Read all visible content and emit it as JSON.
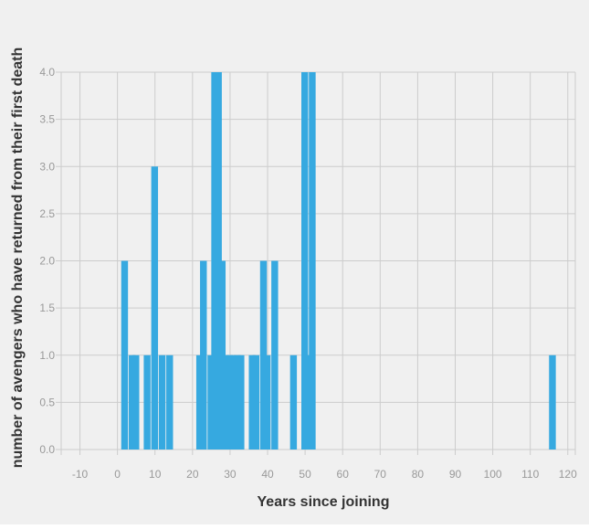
{
  "chart_data": {
    "type": "bar",
    "title": "",
    "xlabel": "Years since joining",
    "ylabel": "number of avengers who have returned from their first death",
    "xlim": [
      -15,
      122
    ],
    "ylim": [
      0,
      4
    ],
    "x_ticks": [
      -10,
      0,
      10,
      20,
      30,
      40,
      50,
      60,
      70,
      80,
      90,
      100,
      110,
      120
    ],
    "y_ticks": [
      0.0,
      0.5,
      1.0,
      1.5,
      2.0,
      2.5,
      3.0,
      3.5,
      4.0
    ],
    "bar_width_years": 2,
    "color": "#36a9e0",
    "grid": true,
    "bars": [
      {
        "x": 2,
        "y": 2
      },
      {
        "x": 4,
        "y": 1
      },
      {
        "x": 5,
        "y": 1
      },
      {
        "x": 8,
        "y": 1
      },
      {
        "x": 10,
        "y": 3
      },
      {
        "x": 12,
        "y": 1
      },
      {
        "x": 14,
        "y": 1
      },
      {
        "x": 22,
        "y": 1
      },
      {
        "x": 23,
        "y": 2
      },
      {
        "x": 25,
        "y": 1
      },
      {
        "x": 26,
        "y": 4
      },
      {
        "x": 27,
        "y": 4
      },
      {
        "x": 28,
        "y": 2
      },
      {
        "x": 29,
        "y": 1
      },
      {
        "x": 30,
        "y": 1
      },
      {
        "x": 31,
        "y": 1
      },
      {
        "x": 32,
        "y": 1
      },
      {
        "x": 33,
        "y": 1
      },
      {
        "x": 36,
        "y": 1
      },
      {
        "x": 37,
        "y": 1
      },
      {
        "x": 39,
        "y": 2
      },
      {
        "x": 40,
        "y": 1
      },
      {
        "x": 42,
        "y": 2
      },
      {
        "x": 47,
        "y": 1
      },
      {
        "x": 50,
        "y": 4
      },
      {
        "x": 51,
        "y": 1
      },
      {
        "x": 52,
        "y": 4
      },
      {
        "x": 116,
        "y": 1
      }
    ]
  }
}
